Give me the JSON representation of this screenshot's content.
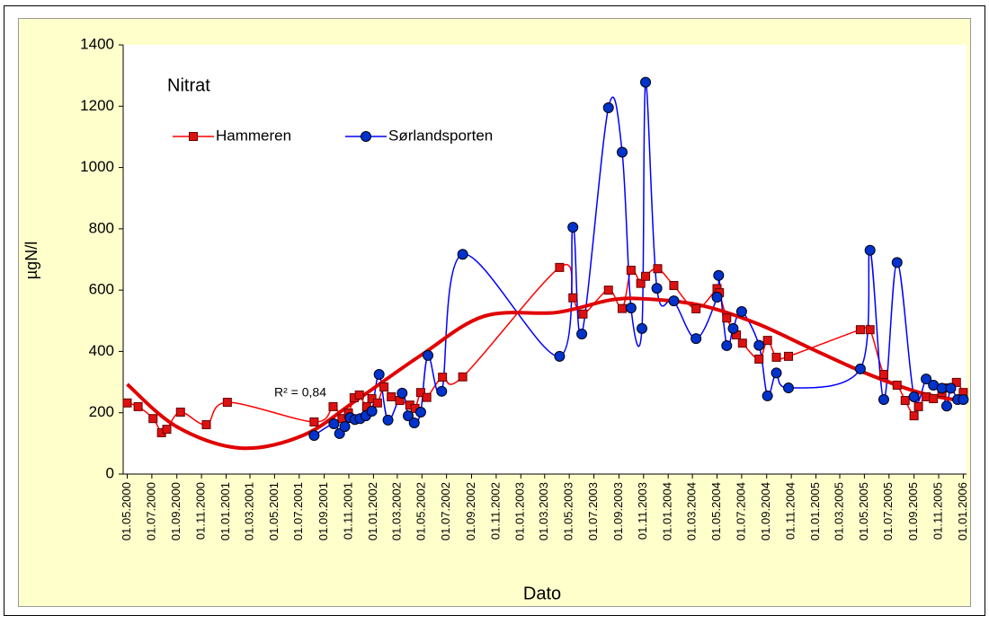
{
  "chart_data": {
    "type": "line",
    "title": "Nitrat",
    "x_label": "Dato",
    "y_label": "µgN/l",
    "ylim": [
      0,
      1400
    ],
    "yticks": [
      0,
      200,
      400,
      600,
      800,
      1000,
      1200,
      1400
    ],
    "xlim": [
      "2000-04-21",
      "2006-01-09"
    ],
    "xticks": [
      {
        "value": "2000-05-01",
        "label": "01.05.2000"
      },
      {
        "value": "2000-07-01",
        "label": "01.07.2000"
      },
      {
        "value": "2000-09-01",
        "label": "01.09.2000"
      },
      {
        "value": "2000-11-01",
        "label": "01.11.2000"
      },
      {
        "value": "2001-01-01",
        "label": "01.01.2001"
      },
      {
        "value": "2001-03-01",
        "label": "01.03.2001"
      },
      {
        "value": "2001-05-01",
        "label": "01.05.2001"
      },
      {
        "value": "2001-07-01",
        "label": "01.07.2001"
      },
      {
        "value": "2001-09-01",
        "label": "01.09.2001"
      },
      {
        "value": "2001-11-01",
        "label": "01.11.2001"
      },
      {
        "value": "2002-01-01",
        "label": "01.01.2002"
      },
      {
        "value": "2002-03-01",
        "label": "01.03.2002"
      },
      {
        "value": "2002-05-01",
        "label": "01.05.2002"
      },
      {
        "value": "2002-07-01",
        "label": "01.07.2002"
      },
      {
        "value": "2002-09-01",
        "label": "01.09.2002"
      },
      {
        "value": "2002-11-01",
        "label": "01.11.2002"
      },
      {
        "value": "2003-01-01",
        "label": "01.01.2003"
      },
      {
        "value": "2003-03-01",
        "label": "01.03.2003"
      },
      {
        "value": "2003-05-01",
        "label": "01.05.2003"
      },
      {
        "value": "2003-07-01",
        "label": "01.07.2003"
      },
      {
        "value": "2003-09-01",
        "label": "01.09.2003"
      },
      {
        "value": "2003-11-01",
        "label": "01.11.2003"
      },
      {
        "value": "2004-01-01",
        "label": "01.01.2004"
      },
      {
        "value": "2004-03-01",
        "label": "01.03.2004"
      },
      {
        "value": "2004-05-01",
        "label": "01.05.2004"
      },
      {
        "value": "2004-07-01",
        "label": "01.07.2004"
      },
      {
        "value": "2004-09-01",
        "label": "01.09.2004"
      },
      {
        "value": "2004-11-01",
        "label": "01.11.2004"
      },
      {
        "value": "2005-01-01",
        "label": "01.01.2005"
      },
      {
        "value": "2005-03-01",
        "label": "01.03.2005"
      },
      {
        "value": "2005-05-01",
        "label": "01.05.2005"
      },
      {
        "value": "2005-07-01",
        "label": "01.07.2005"
      },
      {
        "value": "2005-09-01",
        "label": "01.09.2005"
      },
      {
        "value": "2005-11-01",
        "label": "01.11.2005"
      },
      {
        "value": "2006-01-01",
        "label": "01.01.2006"
      }
    ],
    "series": [
      {
        "name": "Hammeren",
        "color": "#ff0000",
        "marker": "square",
        "marker_color": "#dd1111",
        "x": [
          "2000-05-01",
          "2000-05-28",
          "2000-07-04",
          "2000-07-25",
          "2000-08-07",
          "2000-09-10",
          "2000-11-13",
          "2001-01-04",
          "2001-08-07",
          "2001-09-23",
          "2001-10-15",
          "2001-10-31",
          "2001-11-14",
          "2001-11-27",
          "2001-12-15",
          "2001-12-28",
          "2002-01-11",
          "2002-01-27",
          "2002-02-14",
          "2002-03-07",
          "2002-04-01",
          "2002-04-14",
          "2002-04-28",
          "2002-05-13",
          "2002-06-21",
          "2002-08-10",
          "2003-04-07",
          "2003-05-10",
          "2003-06-04",
          "2003-08-06",
          "2003-09-09",
          "2003-10-01",
          "2003-10-25",
          "2003-11-06",
          "2003-12-06",
          "2004-01-15",
          "2004-03-10",
          "2004-05-01",
          "2004-05-07",
          "2004-05-25",
          "2004-06-18",
          "2004-07-03",
          "2004-08-13",
          "2004-09-03",
          "2004-09-25",
          "2004-10-25",
          "2005-04-21",
          "2005-05-15",
          "2005-06-18",
          "2005-07-21",
          "2005-08-10",
          "2005-09-01",
          "2005-09-12",
          "2005-10-01",
          "2005-10-19",
          "2005-11-09",
          "2005-11-21",
          "2005-12-15",
          "2006-01-01"
        ],
        "values": [
          232,
          220,
          181,
          135,
          146,
          202,
          161,
          234,
          170,
          220,
          181,
          199,
          249,
          258,
          220,
          246,
          232,
          284,
          252,
          240,
          225,
          214,
          266,
          250,
          316,
          317,
          674,
          575,
          522,
          600,
          540,
          665,
          622,
          645,
          670,
          615,
          539,
          605,
          592,
          509,
          454,
          427,
          375,
          436,
          381,
          384,
          471,
          471,
          325,
          290,
          240,
          190,
          220,
          252,
          246,
          266,
          281,
          299,
          266
        ]
      },
      {
        "name": "Sørlandsporten",
        "color": "#0000ff",
        "marker": "circle",
        "marker_color": "#0033cc",
        "x": [
          "2001-08-07",
          "2001-09-25",
          "2001-10-09",
          "2001-10-22",
          "2001-11-04",
          "2001-11-16",
          "2001-11-29",
          "2001-12-13",
          "2001-12-28",
          "2002-01-15",
          "2002-02-06",
          "2002-03-13",
          "2002-03-28",
          "2002-04-12",
          "2002-04-28",
          "2002-05-16",
          "2002-06-19",
          "2002-08-10",
          "2003-04-07",
          "2003-05-10",
          "2003-06-01",
          "2003-08-06",
          "2003-09-09",
          "2003-10-01",
          "2003-10-28",
          "2003-11-06",
          "2003-12-04",
          "2004-01-15",
          "2004-03-10",
          "2004-05-01",
          "2004-05-05",
          "2004-05-25",
          "2004-06-10",
          "2004-07-01",
          "2004-08-13",
          "2004-09-03",
          "2004-09-25",
          "2004-10-25",
          "2005-04-21",
          "2005-05-15",
          "2005-06-18",
          "2005-07-21",
          "2005-09-01",
          "2005-10-01",
          "2005-10-19",
          "2005-11-09",
          "2005-11-21",
          "2005-12-01",
          "2005-12-18",
          "2006-01-01"
        ],
        "values": [
          126,
          164,
          132,
          155,
          184,
          178,
          181,
          190,
          205,
          325,
          176,
          264,
          190,
          167,
          202,
          387,
          270,
          717,
          384,
          805,
          457,
          1195,
          1050,
          542,
          475,
          1278,
          606,
          565,
          442,
          577,
          648,
          419,
          475,
          530,
          420,
          255,
          330,
          281,
          343,
          730,
          243,
          690,
          252,
          310,
          290,
          280,
          222,
          280,
          243,
          243
        ]
      }
    ],
    "trendline": {
      "label": "R² = 0,84",
      "color": "#e00000",
      "x": [
        "2000-05-01",
        "2000-08-31",
        "2001-02-04",
        "2001-07-10",
        "2001-11-22",
        "2002-04-28",
        "2002-10-02",
        "2003-03-30",
        "2003-08-12",
        "2003-11-10",
        "2004-03-23",
        "2004-08-06",
        "2004-12-19",
        "2005-05-01",
        "2005-09-14",
        "2006-01-04"
      ],
      "values": [
        293,
        155,
        85,
        126,
        243,
        387,
        515,
        527,
        568,
        571,
        550,
        492,
        410,
        331,
        266,
        237
      ]
    }
  }
}
